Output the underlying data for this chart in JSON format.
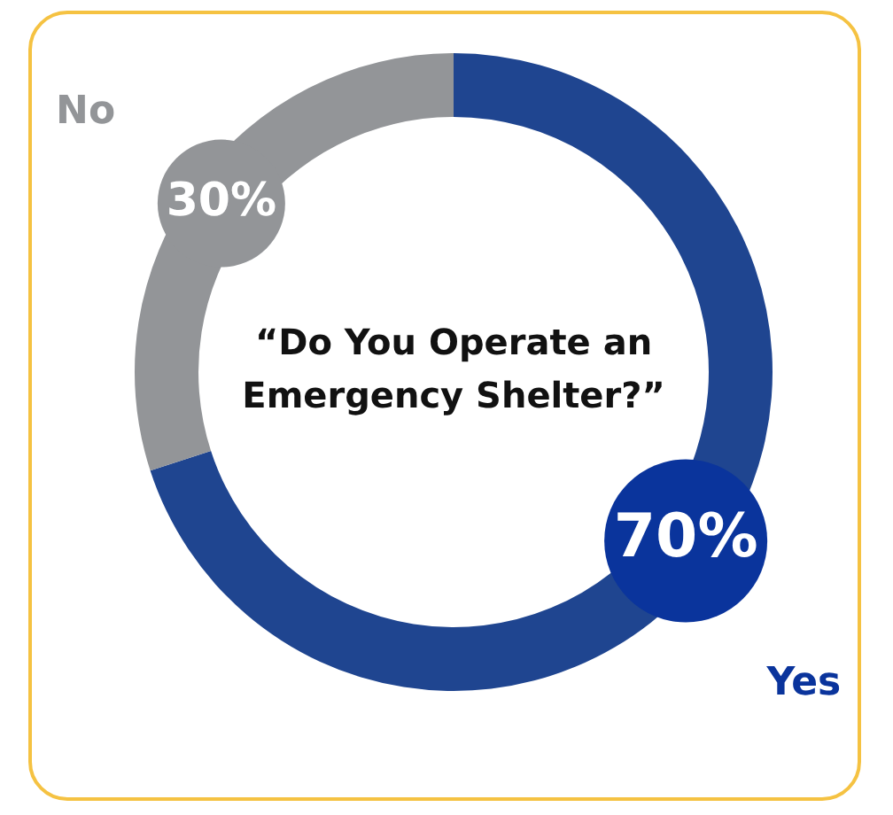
{
  "chart_data": {
    "type": "donut",
    "title": "“Do You Operate an Emergency Shelter?”",
    "categories": [
      "Yes",
      "No"
    ],
    "values": [
      70,
      30
    ],
    "colors": [
      "#1f4590",
      "#939598"
    ],
    "value_labels": [
      "70%",
      "30%"
    ],
    "legend": false
  }
}
